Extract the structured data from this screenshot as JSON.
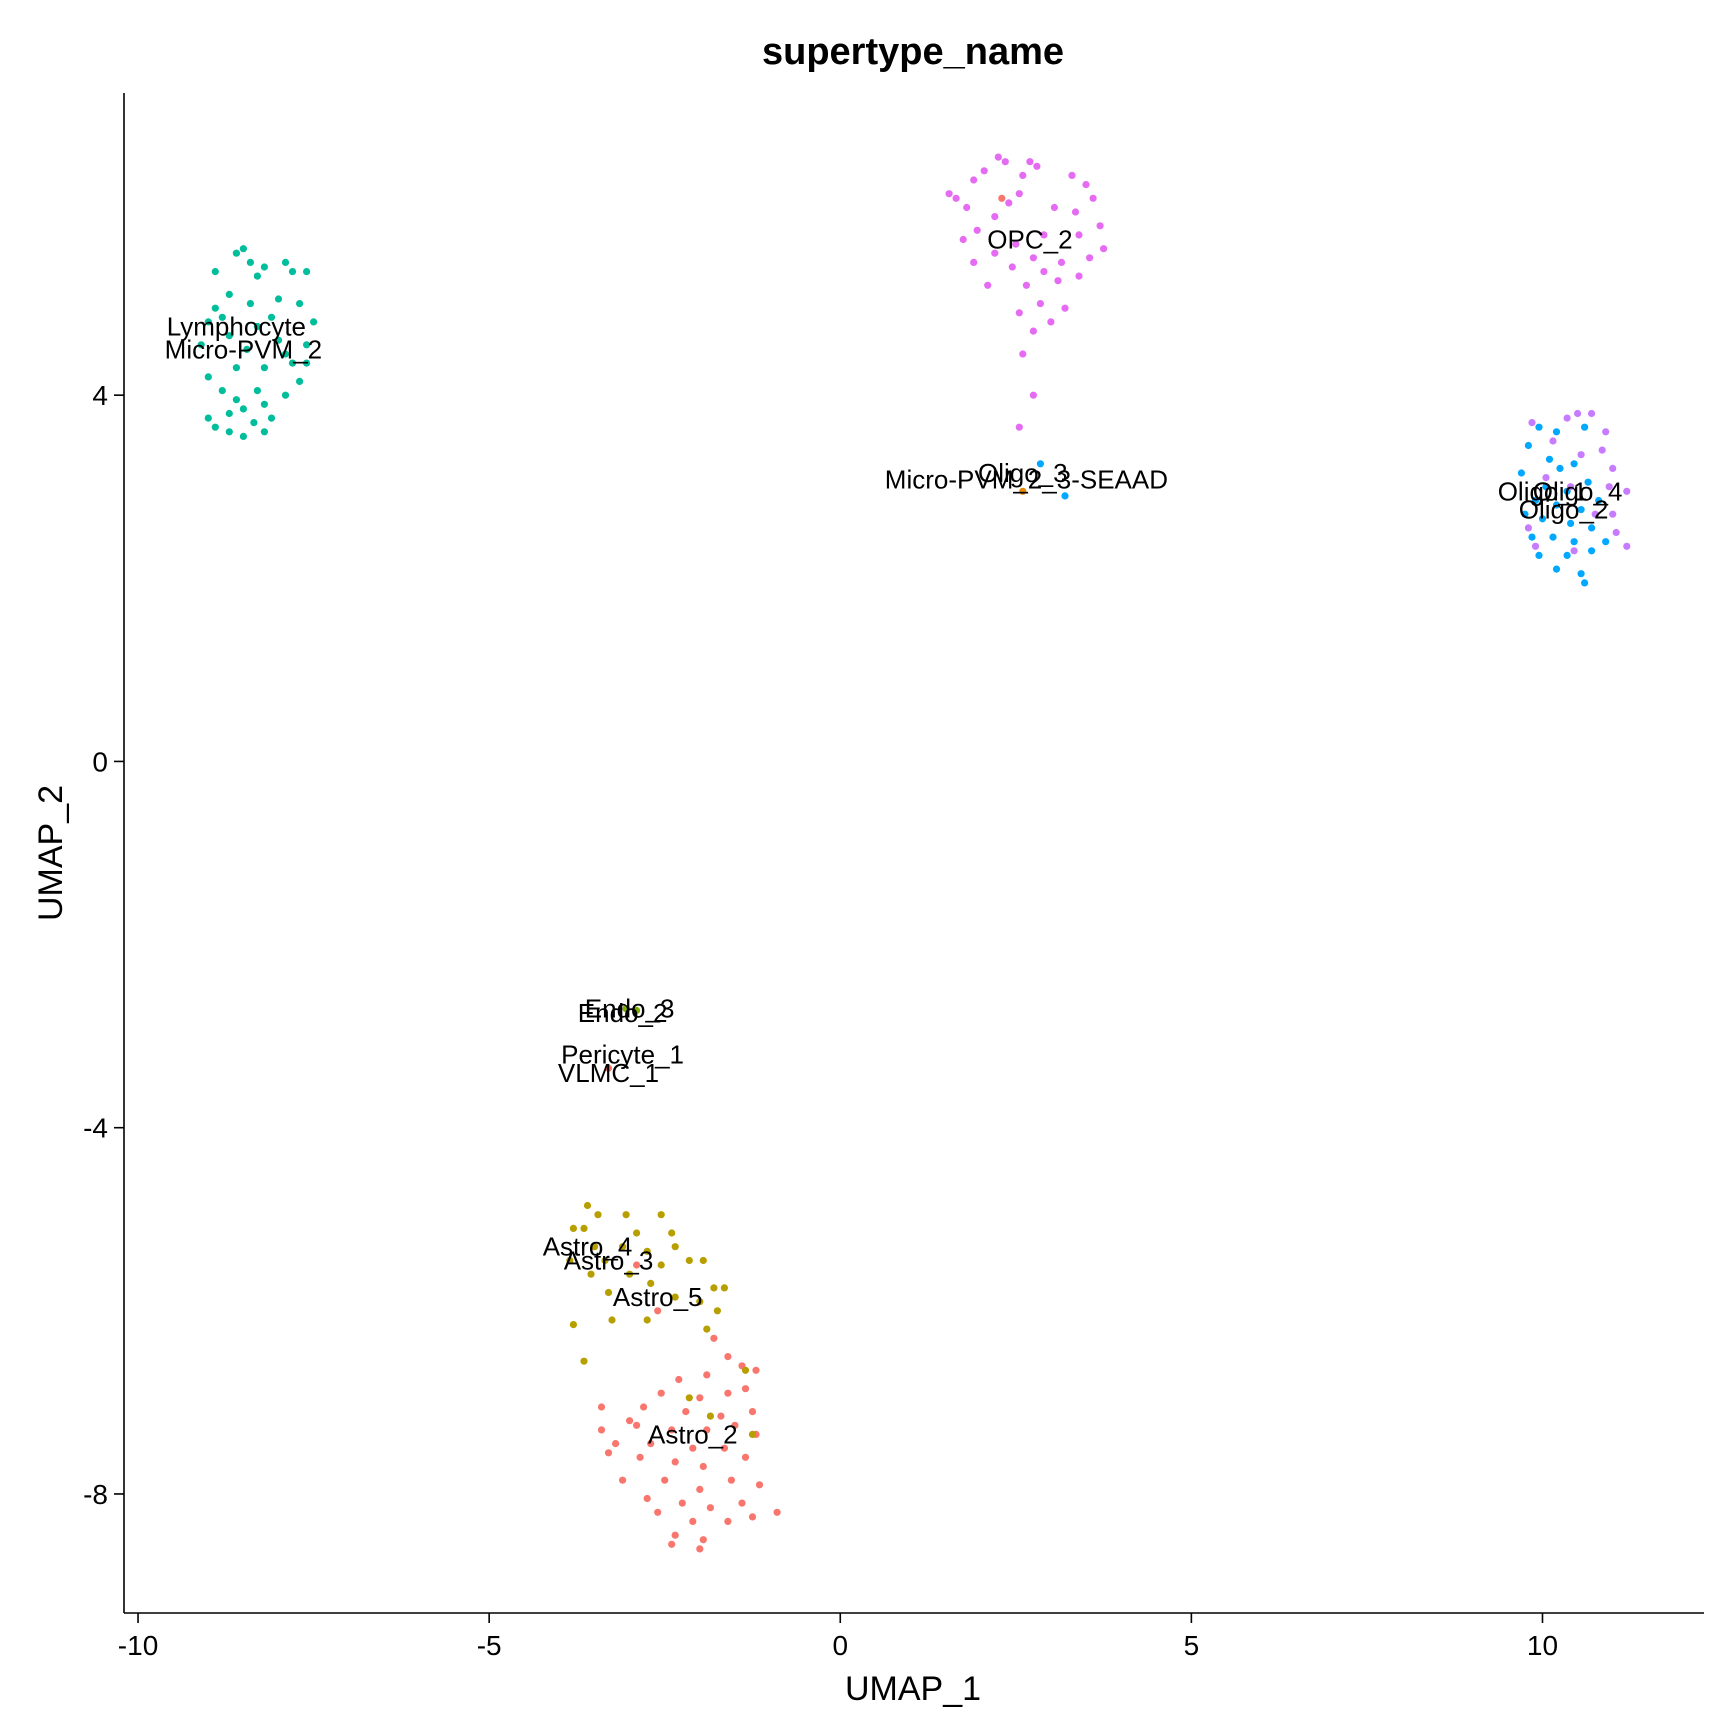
{
  "chart_data": {
    "type": "scatter",
    "title": "supertype_name",
    "xlabel": "UMAP_1",
    "ylabel": "UMAP_2",
    "xlim": [
      -10.2,
      12.3
    ],
    "ylim": [
      -9.3,
      7.3
    ],
    "x_ticks": [
      -10,
      -5,
      0,
      5,
      10
    ],
    "y_ticks": [
      -8,
      -4,
      0,
      4
    ],
    "grid": false,
    "legend": "none",
    "cluster_labels": [
      {
        "text": "Lymphocyte",
        "x": -8.6,
        "y": 4.75
      },
      {
        "text": "Micro-PVM_2",
        "x": -8.5,
        "y": 4.5
      },
      {
        "text": "OPC_2",
        "x": 2.7,
        "y": 5.7
      },
      {
        "text": "Oligo_3",
        "x": 2.6,
        "y": 3.15
      },
      {
        "text": "Micro-PVM_2_3-SEAAD",
        "x": 2.65,
        "y": 3.08
      },
      {
        "text": "Oligo_1",
        "x": 10.0,
        "y": 2.95
      },
      {
        "text": "Oligo_4",
        "x": 10.5,
        "y": 2.95
      },
      {
        "text": "Oligo_2",
        "x": 10.3,
        "y": 2.75
      },
      {
        "text": "Endo_3",
        "x": -3.0,
        "y": -2.7
      },
      {
        "text": "Endo_2",
        "x": -3.1,
        "y": -2.75
      },
      {
        "text": "Pericyte_1",
        "x": -3.1,
        "y": -3.2
      },
      {
        "text": "VLMC_1",
        "x": -3.3,
        "y": -3.4
      },
      {
        "text": "Astro_4",
        "x": -3.6,
        "y": -5.3
      },
      {
        "text": "Astro_3",
        "x": -3.3,
        "y": -5.45
      },
      {
        "text": "Astro_5",
        "x": -2.6,
        "y": -5.85
      },
      {
        "text": "Astro_2",
        "x": -2.1,
        "y": -7.35
      }
    ],
    "series": [
      {
        "color": "#00BE9B",
        "points": [
          [
            -8.5,
            5.6
          ],
          [
            -8.6,
            5.55
          ],
          [
            -8.4,
            5.45
          ],
          [
            -8.2,
            5.4
          ],
          [
            -7.9,
            5.45
          ],
          [
            -8.9,
            5.35
          ],
          [
            -8.3,
            5.3
          ],
          [
            -7.8,
            5.35
          ],
          [
            -7.6,
            5.35
          ],
          [
            -8.7,
            5.1
          ],
          [
            -8.4,
            5.0
          ],
          [
            -8.0,
            5.05
          ],
          [
            -7.7,
            5.0
          ],
          [
            -8.9,
            4.95
          ],
          [
            -8.1,
            4.85
          ],
          [
            -8.8,
            4.85
          ],
          [
            -9.0,
            4.8
          ],
          [
            -8.3,
            4.75
          ],
          [
            -7.5,
            4.8
          ],
          [
            -8.7,
            4.65
          ],
          [
            -8.0,
            4.6
          ],
          [
            -7.6,
            4.55
          ],
          [
            -9.1,
            4.55
          ],
          [
            -8.45,
            4.5
          ],
          [
            -7.9,
            4.45
          ],
          [
            -7.8,
            4.35
          ],
          [
            -7.6,
            4.35
          ],
          [
            -8.6,
            4.3
          ],
          [
            -8.2,
            4.3
          ],
          [
            -9.0,
            4.2
          ],
          [
            -7.7,
            4.15
          ],
          [
            -8.8,
            4.05
          ],
          [
            -8.3,
            4.05
          ],
          [
            -7.9,
            4.0
          ],
          [
            -8.6,
            3.95
          ],
          [
            -8.2,
            3.9
          ],
          [
            -8.5,
            3.85
          ],
          [
            -8.7,
            3.8
          ],
          [
            -9.0,
            3.75
          ],
          [
            -8.1,
            3.75
          ],
          [
            -8.35,
            3.7
          ],
          [
            -8.7,
            3.6
          ],
          [
            -8.2,
            3.6
          ],
          [
            -8.5,
            3.55
          ],
          [
            -8.9,
            3.65
          ]
        ]
      },
      {
        "color": "#E56BF3",
        "points": [
          [
            2.25,
            6.6
          ],
          [
            2.35,
            6.55
          ],
          [
            2.7,
            6.55
          ],
          [
            2.8,
            6.5
          ],
          [
            2.05,
            6.45
          ],
          [
            2.6,
            6.4
          ],
          [
            1.9,
            6.35
          ],
          [
            3.3,
            6.4
          ],
          [
            3.5,
            6.3
          ],
          [
            1.55,
            6.2
          ],
          [
            1.65,
            6.15
          ],
          [
            2.55,
            6.2
          ],
          [
            3.6,
            6.15
          ],
          [
            1.8,
            6.05
          ],
          [
            2.4,
            6.1
          ],
          [
            3.05,
            6.05
          ],
          [
            3.35,
            6.0
          ],
          [
            2.2,
            5.95
          ],
          [
            3.7,
            5.85
          ],
          [
            1.95,
            5.8
          ],
          [
            2.9,
            5.75
          ],
          [
            3.4,
            5.75
          ],
          [
            1.75,
            5.7
          ],
          [
            2.5,
            5.65
          ],
          [
            3.75,
            5.6
          ],
          [
            2.2,
            5.55
          ],
          [
            2.75,
            5.5
          ],
          [
            3.55,
            5.5
          ],
          [
            1.9,
            5.45
          ],
          [
            3.15,
            5.45
          ],
          [
            2.45,
            5.4
          ],
          [
            2.9,
            5.35
          ],
          [
            3.4,
            5.3
          ],
          [
            2.1,
            5.2
          ],
          [
            2.65,
            5.2
          ],
          [
            3.1,
            5.25
          ],
          [
            2.85,
            5.0
          ],
          [
            3.2,
            4.95
          ],
          [
            2.55,
            4.9
          ],
          [
            2.75,
            4.7
          ],
          [
            3.0,
            4.8
          ],
          [
            2.6,
            4.45
          ],
          [
            2.75,
            4.0
          ],
          [
            2.55,
            3.65
          ]
        ]
      },
      {
        "color": "#F8766D",
        "points": [
          [
            2.3,
            6.15
          ],
          [
            -3.3,
            -3.35
          ],
          [
            -2.6,
            -6.0
          ],
          [
            -2.9,
            -5.5
          ],
          [
            -1.8,
            -6.3
          ],
          [
            -1.6,
            -6.5
          ],
          [
            -1.4,
            -6.6
          ],
          [
            -1.9,
            -6.7
          ],
          [
            -2.3,
            -6.75
          ],
          [
            -1.2,
            -6.65
          ],
          [
            -2.55,
            -6.9
          ],
          [
            -2.0,
            -6.95
          ],
          [
            -1.6,
            -6.9
          ],
          [
            -1.35,
            -6.85
          ],
          [
            -2.8,
            -7.05
          ],
          [
            -2.2,
            -7.1
          ],
          [
            -1.7,
            -7.15
          ],
          [
            -1.25,
            -7.1
          ],
          [
            -3.0,
            -7.2
          ],
          [
            -2.4,
            -7.3
          ],
          [
            -1.9,
            -7.3
          ],
          [
            -1.5,
            -7.25
          ],
          [
            -3.4,
            -7.3
          ],
          [
            -1.2,
            -7.35
          ],
          [
            -2.7,
            -7.45
          ],
          [
            -2.1,
            -7.5
          ],
          [
            -1.65,
            -7.5
          ],
          [
            -3.2,
            -7.45
          ],
          [
            -2.85,
            -7.6
          ],
          [
            -2.35,
            -7.65
          ],
          [
            -1.95,
            -7.7
          ],
          [
            -1.35,
            -7.6
          ],
          [
            -3.1,
            -7.85
          ],
          [
            -2.5,
            -7.85
          ],
          [
            -2.0,
            -7.95
          ],
          [
            -1.55,
            -7.85
          ],
          [
            -1.15,
            -7.9
          ],
          [
            -2.75,
            -8.05
          ],
          [
            -2.25,
            -8.1
          ],
          [
            -1.85,
            -8.15
          ],
          [
            -1.4,
            -8.1
          ],
          [
            -2.6,
            -8.2
          ],
          [
            -1.6,
            -8.3
          ],
          [
            -2.1,
            -8.3
          ],
          [
            -1.25,
            -8.25
          ],
          [
            -0.9,
            -8.2
          ],
          [
            -2.35,
            -8.45
          ],
          [
            -1.95,
            -8.5
          ],
          [
            -2.4,
            -8.55
          ],
          [
            -2.0,
            -8.6
          ],
          [
            -3.4,
            -7.05
          ],
          [
            -2.9,
            -7.25
          ],
          [
            -3.3,
            -7.55
          ]
        ]
      },
      {
        "color": "#B79F00",
        "points": [
          [
            -3.6,
            -4.85
          ],
          [
            -3.45,
            -4.95
          ],
          [
            -3.05,
            -4.95
          ],
          [
            -2.55,
            -4.95
          ],
          [
            -3.8,
            -5.1
          ],
          [
            -3.65,
            -5.1
          ],
          [
            -2.9,
            -5.15
          ],
          [
            -2.4,
            -5.15
          ],
          [
            -3.5,
            -5.3
          ],
          [
            -3.1,
            -5.3
          ],
          [
            -2.75,
            -5.35
          ],
          [
            -2.35,
            -5.3
          ],
          [
            -3.85,
            -5.45
          ],
          [
            -3.35,
            -5.45
          ],
          [
            -2.55,
            -5.5
          ],
          [
            -2.15,
            -5.45
          ],
          [
            -1.95,
            -5.45
          ],
          [
            -3.55,
            -5.6
          ],
          [
            -3.0,
            -5.6
          ],
          [
            -2.7,
            -5.7
          ],
          [
            -1.8,
            -5.75
          ],
          [
            -1.65,
            -5.75
          ],
          [
            -3.3,
            -5.8
          ],
          [
            -2.35,
            -5.85
          ],
          [
            -2.0,
            -5.9
          ],
          [
            -1.75,
            -6.0
          ],
          [
            -3.8,
            -6.15
          ],
          [
            -3.25,
            -6.1
          ],
          [
            -2.75,
            -6.1
          ],
          [
            -1.9,
            -6.2
          ],
          [
            -3.65,
            -6.55
          ],
          [
            -1.35,
            -6.65
          ],
          [
            -2.15,
            -6.95
          ],
          [
            -1.85,
            -7.15
          ],
          [
            -1.25,
            -7.35
          ]
        ]
      },
      {
        "color": "#00A9FF",
        "points": [
          [
            9.95,
            3.65
          ],
          [
            10.2,
            3.6
          ],
          [
            10.6,
            3.65
          ],
          [
            9.8,
            3.45
          ],
          [
            10.1,
            3.3
          ],
          [
            10.45,
            3.25
          ],
          [
            10.25,
            3.2
          ],
          [
            9.7,
            3.15
          ],
          [
            10.05,
            3.0
          ],
          [
            10.65,
            3.05
          ],
          [
            10.35,
            2.95
          ],
          [
            9.9,
            2.85
          ],
          [
            10.2,
            2.8
          ],
          [
            10.55,
            2.75
          ],
          [
            10.8,
            2.85
          ],
          [
            9.75,
            2.7
          ],
          [
            10.0,
            2.65
          ],
          [
            10.4,
            2.6
          ],
          [
            10.7,
            2.55
          ],
          [
            9.85,
            2.45
          ],
          [
            10.15,
            2.45
          ],
          [
            10.45,
            2.4
          ],
          [
            10.9,
            2.4
          ],
          [
            9.95,
            2.25
          ],
          [
            10.35,
            2.25
          ],
          [
            10.7,
            2.3
          ],
          [
            10.2,
            2.1
          ],
          [
            10.55,
            2.05
          ],
          [
            10.6,
            1.95
          ],
          [
            2.85,
            3.25
          ],
          [
            3.2,
            2.9
          ]
        ]
      },
      {
        "color": "#C77CFF",
        "points": [
          [
            10.5,
            3.8
          ],
          [
            10.7,
            3.8
          ],
          [
            9.85,
            3.7
          ],
          [
            10.35,
            3.75
          ],
          [
            10.9,
            3.6
          ],
          [
            10.15,
            3.5
          ],
          [
            10.85,
            3.4
          ],
          [
            10.55,
            3.35
          ],
          [
            11.0,
            3.2
          ],
          [
            10.95,
            3.0
          ],
          [
            11.2,
            2.95
          ],
          [
            10.05,
            3.1
          ],
          [
            10.4,
            3.0
          ],
          [
            10.75,
            2.7
          ],
          [
            11.0,
            2.7
          ],
          [
            9.8,
            2.55
          ],
          [
            11.05,
            2.5
          ],
          [
            9.9,
            2.35
          ],
          [
            11.2,
            2.35
          ],
          [
            10.45,
            2.3
          ]
        ]
      },
      {
        "color": "#7CAE00",
        "points": [
          [
            -3.05,
            -2.7
          ],
          [
            -2.9,
            -2.72
          ]
        ]
      },
      {
        "color": "#E58700",
        "points": [
          [
            2.6,
            2.95
          ]
        ]
      }
    ]
  }
}
